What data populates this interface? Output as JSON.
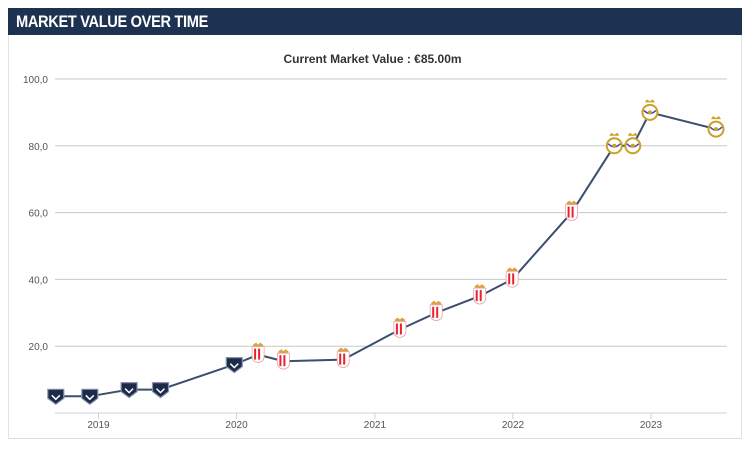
{
  "header": {
    "title": "MARKET VALUE OVER TIME"
  },
  "subtitle": "Current Market Value : €85.00m",
  "colors": {
    "header_bg": "#1d3150",
    "line": "#3b4f6e",
    "grid": "#c8c8c8",
    "club_bordeaux": "#1d2b4a",
    "club_monaco": "#e8232f",
    "club_real_madrid": "#c9a228"
  },
  "chart_data": {
    "type": "line",
    "title": "",
    "xlabel": "",
    "ylabel": "",
    "ylim": [
      0,
      100
    ],
    "xlim": [
      "2018-09-08",
      "2023-07-21"
    ],
    "y_ticks": [
      100,
      80,
      60,
      40,
      20
    ],
    "y_tick_labels": [
      "100,0",
      "80,0",
      "60,0",
      "40,0",
      "20,0"
    ],
    "x_ticks": [
      "2019-01-01",
      "2020-01-01",
      "2021-01-01",
      "2022-01-01",
      "2023-01-01"
    ],
    "x_tick_labels": [
      "2019",
      "2020",
      "2021",
      "2022",
      "2023"
    ],
    "grid": true,
    "series": [
      {
        "points": [
          {
            "date": "2018-09-10",
            "value": 5,
            "club": "bordeaux"
          },
          {
            "date": "2018-12-09",
            "value": 5,
            "club": "bordeaux"
          },
          {
            "date": "2019-03-23",
            "value": 7,
            "club": "bordeaux"
          },
          {
            "date": "2019-06-14",
            "value": 7,
            "club": "bordeaux"
          },
          {
            "date": "2019-12-26",
            "value": 14.5,
            "club": "bordeaux"
          },
          {
            "date": "2020-02-27",
            "value": 17.5,
            "club": "monaco"
          },
          {
            "date": "2020-05-04",
            "value": 15.5,
            "club": "monaco"
          },
          {
            "date": "2020-10-09",
            "value": 16,
            "club": "monaco"
          },
          {
            "date": "2021-03-08",
            "value": 25,
            "club": "monaco"
          },
          {
            "date": "2021-06-12",
            "value": 30,
            "club": "monaco"
          },
          {
            "date": "2021-10-05",
            "value": 35,
            "club": "monaco"
          },
          {
            "date": "2021-12-30",
            "value": 40,
            "club": "monaco"
          },
          {
            "date": "2022-06-05",
            "value": 60,
            "club": "monaco"
          },
          {
            "date": "2022-09-26",
            "value": 80,
            "club": "real_madrid"
          },
          {
            "date": "2022-11-14",
            "value": 80,
            "club": "real_madrid"
          },
          {
            "date": "2022-12-29",
            "value": 90,
            "club": "real_madrid"
          },
          {
            "date": "2023-06-22",
            "value": 85,
            "club": "real_madrid"
          }
        ]
      }
    ]
  }
}
